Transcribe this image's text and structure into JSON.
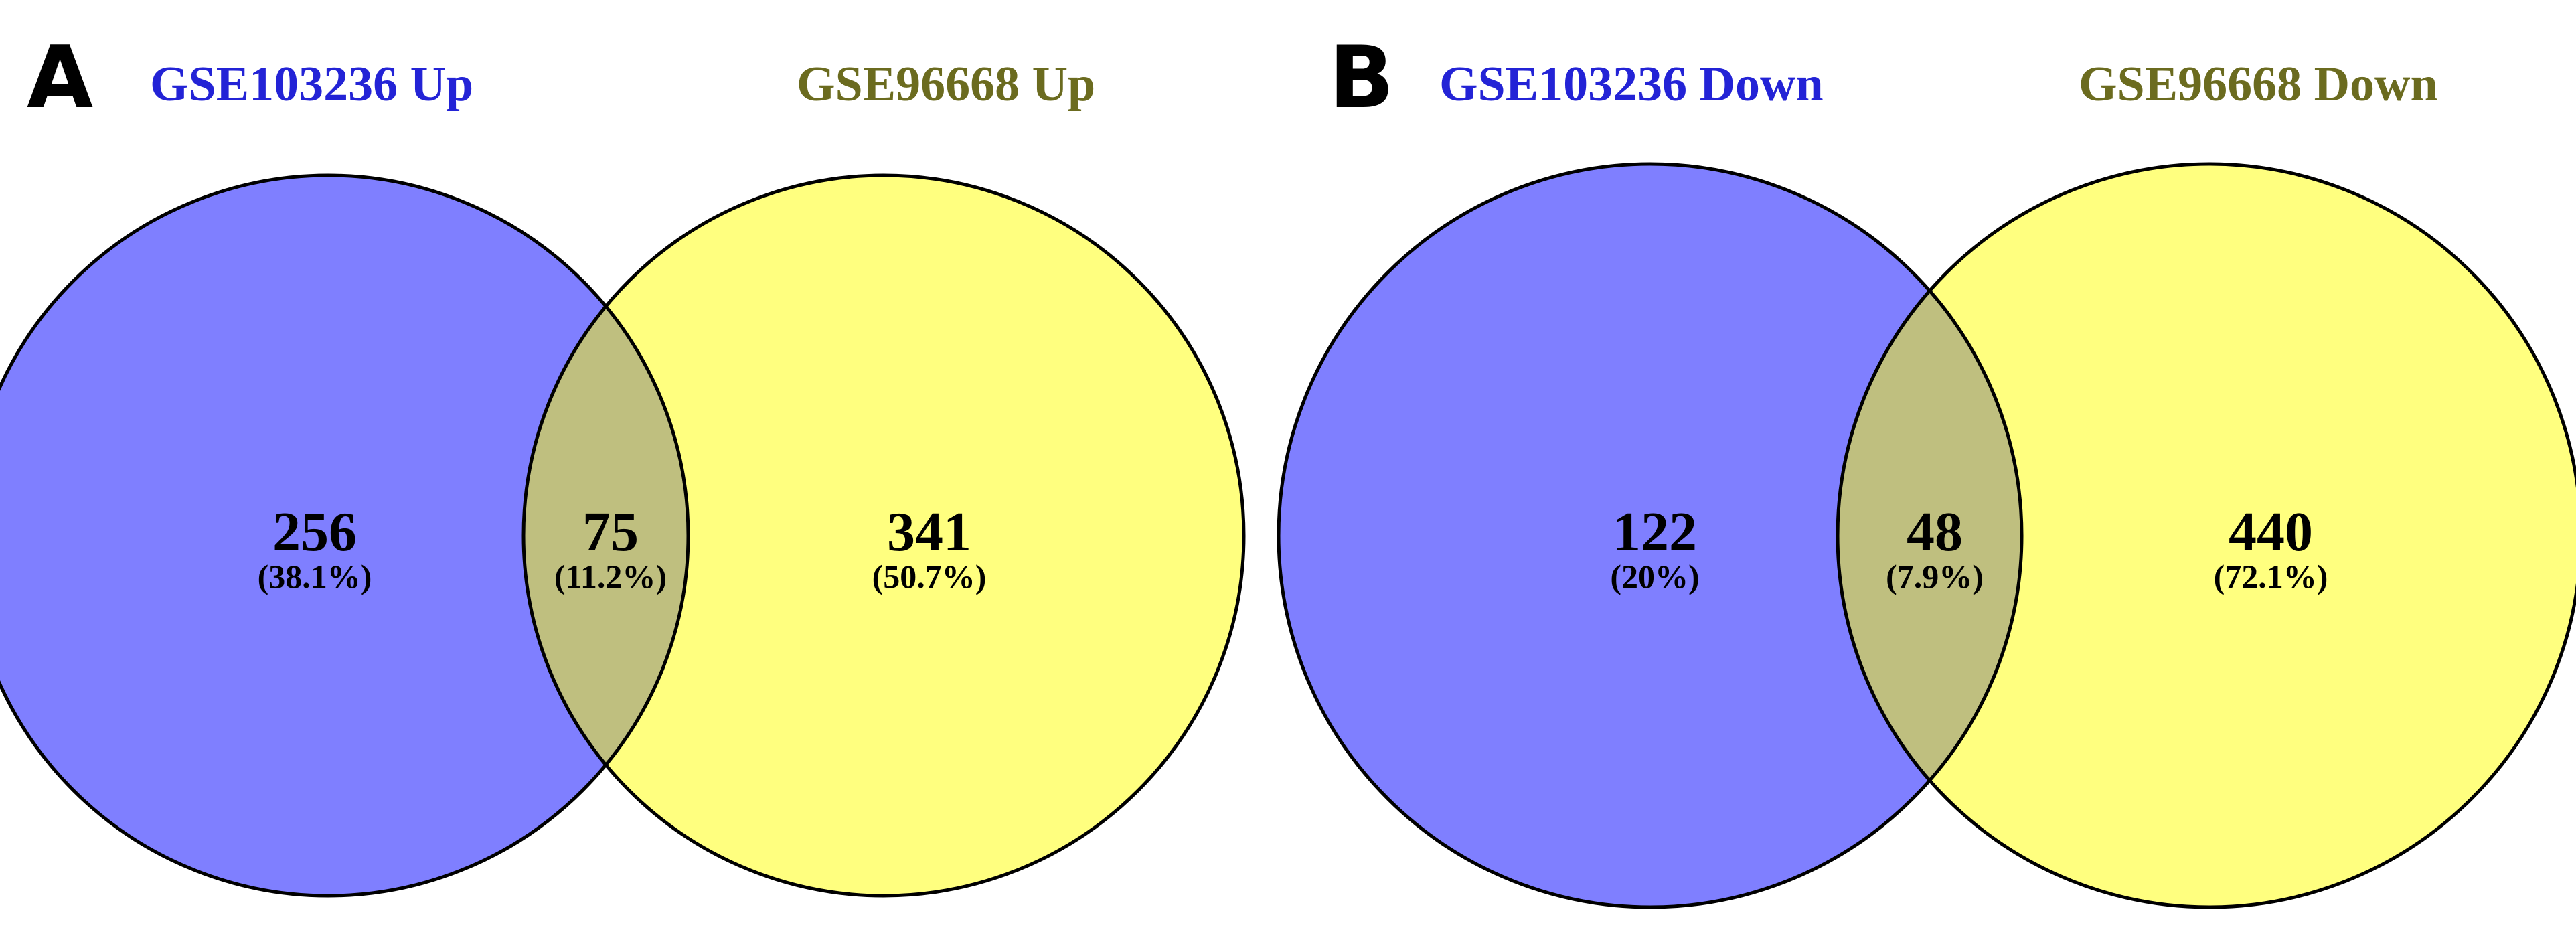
{
  "colors": {
    "left_fill": "#7f7fff",
    "right_fill": "#ffff7f",
    "overlap_fill": "#bfbf7f",
    "left_title": "#2323d6",
    "right_title": "#6b6b1f"
  },
  "panels": [
    {
      "letter": "A",
      "left_set": {
        "title": "GSE103236 Up",
        "count": "256",
        "percent": "(38.1%)"
      },
      "overlap": {
        "count": "75",
        "percent": "(11.2%)"
      },
      "right_set": {
        "title": "GSE96668 Up",
        "count": "341",
        "percent": "(50.7%)"
      }
    },
    {
      "letter": "B",
      "left_set": {
        "title": "GSE103236 Down",
        "count": "122",
        "percent": "(20%)"
      },
      "overlap": {
        "count": "48",
        "percent": "(7.9%)"
      },
      "right_set": {
        "title": "GSE96668 Down",
        "count": "440",
        "percent": "(72.1%)"
      }
    }
  ]
}
